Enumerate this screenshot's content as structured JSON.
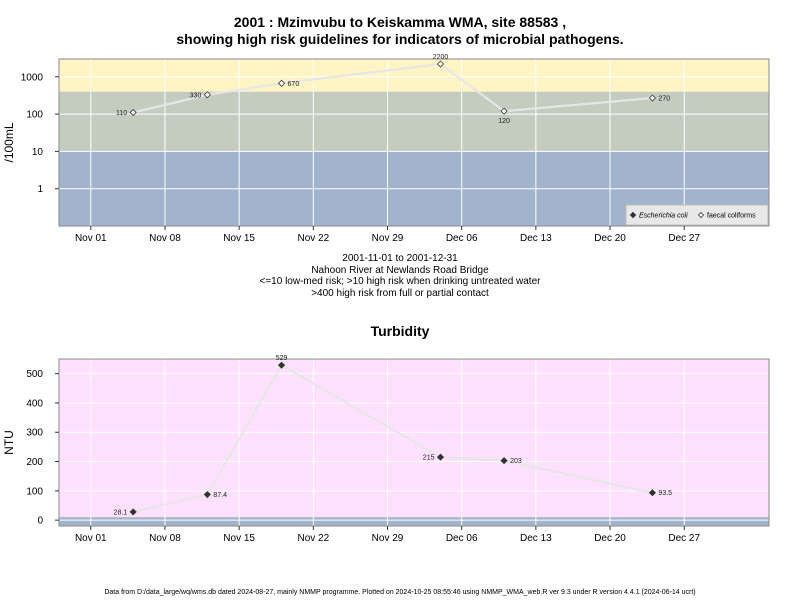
{
  "title_line1": "2001 : Mzimvubu to Keiskamma WMA, site 88583 ,",
  "title_line2": "showing high risk guidelines for indicators of microbial pathogens.",
  "caption": {
    "line1": "2001-11-01 to 2001-12-31",
    "line2": "Nahoon River at Newlands Road Bridge",
    "line3": "<=10 low-med risk; >10 high risk when drinking untreated water",
    "line4": ">400 high risk from full or partial contact"
  },
  "turbidity_title": "Turbidity",
  "footer": "Data from D:/data_large/wq/wms.db dated 2024-08-27, mainly NMMP programme. Plotted on 2024-10-25 08:55:46 using NMMP_WMA_web.R ver 9.3 under R version 4.4.1 (2024-06-14 ucrt)",
  "colors": {
    "zone_high": "#fff4c4",
    "zone_mid": "#c4ccc0",
    "zone_low": "#a2b4cc",
    "turbidity_bg": "#ffe0ff",
    "turbidity_band": "#a2b4cc",
    "line": "#e6e6e6",
    "grid": "#ffffff"
  },
  "chart_data": [
    {
      "type": "line",
      "ylabel": "/100mL",
      "y_scale": "log",
      "ylim": [
        0.1,
        3000
      ],
      "x_range": [
        "2001-10-29",
        "2002-01-04"
      ],
      "x_ticks": [
        "Nov 01",
        "Nov 08",
        "Nov 15",
        "Nov 22",
        "Nov 29",
        "Dec 06",
        "Dec 13",
        "Dec 20",
        "Dec 27"
      ],
      "x_tick_dates": [
        "2001-11-01",
        "2001-11-08",
        "2001-11-15",
        "2001-11-22",
        "2001-11-29",
        "2001-12-06",
        "2001-12-13",
        "2001-12-20",
        "2001-12-27"
      ],
      "y_ticks": [
        1,
        10,
        100,
        1000
      ],
      "y_tick_labels": [
        "1",
        "10",
        "100",
        "1000"
      ],
      "zones": [
        {
          "from": 0.1,
          "to": 10,
          "color": "#a2b4cc"
        },
        {
          "from": 10,
          "to": 400,
          "color": "#c4ccc0"
        },
        {
          "from": 400,
          "to": 3000,
          "color": "#fff4c4"
        }
      ],
      "legend": {
        "position": "bottom-right",
        "entries": [
          "Escherichia coli",
          "faecal coliforms"
        ]
      },
      "series": [
        {
          "name": "faecal coliforms",
          "marker": "open-diamond",
          "points": [
            {
              "x": "2001-11-05",
              "y": 110,
              "label": "110",
              "pos": "left"
            },
            {
              "x": "2001-11-12",
              "y": 330,
              "label": "330",
              "pos": "left"
            },
            {
              "x": "2001-11-19",
              "y": 670,
              "label": "670",
              "pos": "right"
            },
            {
              "x": "2001-12-04",
              "y": 2200,
              "label": "2200",
              "pos": "above"
            },
            {
              "x": "2001-12-10",
              "y": 120,
              "label": "120",
              "pos": "below"
            },
            {
              "x": "2001-12-24",
              "y": 270,
              "label": "270",
              "pos": "right"
            }
          ]
        }
      ]
    },
    {
      "type": "line",
      "title": "Turbidity",
      "ylabel": "NTU",
      "ylim": [
        -20,
        550
      ],
      "x_range": [
        "2001-10-29",
        "2002-01-04"
      ],
      "x_ticks": [
        "Nov 01",
        "Nov 08",
        "Nov 15",
        "Nov 22",
        "Nov 29",
        "Dec 06",
        "Dec 13",
        "Dec 20",
        "Dec 27"
      ],
      "x_tick_dates": [
        "2001-11-01",
        "2001-11-08",
        "2001-11-15",
        "2001-11-22",
        "2001-11-29",
        "2001-12-06",
        "2001-12-13",
        "2001-12-20",
        "2001-12-27"
      ],
      "y_ticks": [
        0,
        100,
        200,
        300,
        400,
        500
      ],
      "y_tick_labels": [
        "0",
        "100",
        "200",
        "300",
        "400",
        "500"
      ],
      "band": {
        "from": -20,
        "to": 10,
        "color": "#a2b4cc"
      },
      "series": [
        {
          "name": "Turbidity",
          "marker": "filled-diamond",
          "points": [
            {
              "x": "2001-11-05",
              "y": 28.1,
              "label": "28.1",
              "pos": "left"
            },
            {
              "x": "2001-11-12",
              "y": 87.4,
              "label": "87.4",
              "pos": "right"
            },
            {
              "x": "2001-11-19",
              "y": 529,
              "label": "529",
              "pos": "above"
            },
            {
              "x": "2001-12-04",
              "y": 215,
              "label": "215",
              "pos": "left"
            },
            {
              "x": "2001-12-10",
              "y": 203,
              "label": "203",
              "pos": "right"
            },
            {
              "x": "2001-12-24",
              "y": 93.5,
              "label": "93.5",
              "pos": "right"
            }
          ]
        }
      ]
    }
  ]
}
